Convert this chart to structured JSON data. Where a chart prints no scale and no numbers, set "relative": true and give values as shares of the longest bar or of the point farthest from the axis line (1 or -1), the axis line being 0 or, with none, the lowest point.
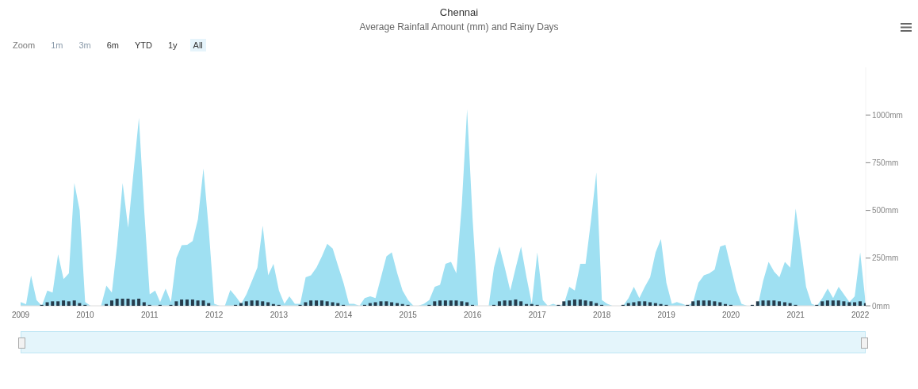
{
  "chart_data": [
    {
      "type": "area",
      "title": "Chennai",
      "subtitle": "Average Rainfall Amount (mm) and Rainy Days",
      "annotations": [
        "Zoom",
        "1m",
        "3m",
        "6m",
        "YTD",
        "1y",
        "All"
      ],
      "x": [
        "2009-01",
        "2009-02",
        "2009-03",
        "2009-04",
        "2009-05",
        "2009-06",
        "2009-07",
        "2009-08",
        "2009-09",
        "2009-10",
        "2009-11",
        "2009-12",
        "2010-01",
        "2010-02",
        "2010-03",
        "2010-04",
        "2010-05",
        "2010-06",
        "2010-07",
        "2010-08",
        "2010-09",
        "2010-10",
        "2010-11",
        "2010-12",
        "2011-01",
        "2011-02",
        "2011-03",
        "2011-04",
        "2011-05",
        "2011-06",
        "2011-07",
        "2011-08",
        "2011-09",
        "2011-10",
        "2011-11",
        "2011-12",
        "2012-01",
        "2012-02",
        "2012-03",
        "2012-04",
        "2012-05",
        "2012-06",
        "2012-07",
        "2012-08",
        "2012-09",
        "2012-10",
        "2012-11",
        "2012-12",
        "2013-01",
        "2013-02",
        "2013-03",
        "2013-04",
        "2013-05",
        "2013-06",
        "2013-07",
        "2013-08",
        "2013-09",
        "2013-10",
        "2013-11",
        "2013-12",
        "2014-01",
        "2014-02",
        "2014-03",
        "2014-04",
        "2014-05",
        "2014-06",
        "2014-07",
        "2014-08",
        "2014-09",
        "2014-10",
        "2014-11",
        "2014-12",
        "2015-01",
        "2015-02",
        "2015-03",
        "2015-04",
        "2015-05",
        "2015-06",
        "2015-07",
        "2015-08",
        "2015-09",
        "2015-10",
        "2015-11",
        "2015-12",
        "2016-01",
        "2016-02",
        "2016-03",
        "2016-04",
        "2016-05",
        "2016-06",
        "2016-07",
        "2016-08",
        "2016-09",
        "2016-10",
        "2016-11",
        "2016-12",
        "2017-01",
        "2017-02",
        "2017-03",
        "2017-04",
        "2017-05",
        "2017-06",
        "2017-07",
        "2017-08",
        "2017-09",
        "2017-10",
        "2017-11",
        "2017-12",
        "2018-01",
        "2018-02",
        "2018-03",
        "2018-04",
        "2018-05",
        "2018-06",
        "2018-07",
        "2018-08",
        "2018-09",
        "2018-10",
        "2018-11",
        "2018-12",
        "2019-01",
        "2019-02",
        "2019-03",
        "2019-04",
        "2019-05",
        "2019-06",
        "2019-07",
        "2019-08",
        "2019-09",
        "2019-10",
        "2019-11",
        "2019-12",
        "2020-01",
        "2020-02",
        "2020-03",
        "2020-04",
        "2020-05",
        "2020-06",
        "2020-07",
        "2020-08",
        "2020-09",
        "2020-10",
        "2020-11",
        "2020-12",
        "2021-01",
        "2021-02",
        "2021-03",
        "2021-04",
        "2021-05",
        "2021-06",
        "2021-07",
        "2021-08",
        "2021-09",
        "2021-10",
        "2021-11",
        "2021-12",
        "2022-01",
        "2022-02"
      ],
      "series": [
        {
          "color": "#9fe0f2",
          "values": [
            20,
            8,
            159,
            30,
            0,
            80,
            70,
            270,
            140,
            170,
            644,
            500,
            20,
            0,
            0,
            0,
            106,
            70,
            318,
            644,
            409,
            697,
            985,
            500,
            60,
            80,
            20,
            90,
            20,
            250,
            318,
            320,
            340,
            455,
            720,
            400,
            10,
            0,
            0,
            83,
            50,
            10,
            60,
            130,
            200,
            420,
            160,
            220,
            80,
            10,
            50,
            10,
            10,
            150,
            160,
            200,
            260,
            325,
            300,
            210,
            120,
            10,
            10,
            0,
            40,
            50,
            40,
            150,
            260,
            280,
            170,
            80,
            30,
            0,
            0,
            10,
            30,
            100,
            110,
            220,
            230,
            170,
            530,
            1030,
            457,
            0,
            0,
            0,
            200,
            310,
            200,
            80,
            200,
            310,
            150,
            10,
            280,
            30,
            0,
            10,
            0,
            10,
            100,
            80,
            220,
            220,
            450,
            700,
            30,
            10,
            0,
            0,
            0,
            40,
            100,
            40,
            100,
            150,
            280,
            350,
            120,
            10,
            20,
            10,
            0,
            20,
            120,
            160,
            170,
            190,
            310,
            320,
            200,
            80,
            10,
            0,
            0,
            0,
            130,
            230,
            180,
            150,
            230,
            200,
            510,
            300,
            100,
            10,
            0,
            40,
            90,
            40,
            100,
            60,
            20,
            50,
            280,
            10
          ]
        }
      ],
      "xlim": [
        "2009-01",
        "2022-02"
      ],
      "xticks": [
        "2009",
        "2010",
        "2011",
        "2012",
        "2013",
        "2014",
        "2015",
        "2016",
        "2017",
        "2018",
        "2019",
        "2020",
        "2021",
        "2022"
      ],
      "ylim": [
        0,
        1250
      ],
      "yticks": [
        {
          "value": 0,
          "label": "0mm"
        },
        {
          "value": 250,
          "label": "250mm"
        },
        {
          "value": 500,
          "label": "500mm"
        },
        {
          "value": 750,
          "label": "750mm"
        },
        {
          "value": 1000,
          "label": "1000mm"
        }
      ]
    },
    {
      "type": "bar",
      "relative": true,
      "x": [
        "2009-01",
        "2009-02",
        "2009-03",
        "2009-04",
        "2009-05",
        "2009-06",
        "2009-07",
        "2009-08",
        "2009-09",
        "2009-10",
        "2009-11",
        "2009-12",
        "2010-01",
        "2010-02",
        "2010-03",
        "2010-04",
        "2010-05",
        "2010-06",
        "2010-07",
        "2010-08",
        "2010-09",
        "2010-10",
        "2010-11",
        "2010-12",
        "2011-01",
        "2011-02",
        "2011-03",
        "2011-04",
        "2011-05",
        "2011-06",
        "2011-07",
        "2011-08",
        "2011-09",
        "2011-10",
        "2011-11",
        "2011-12",
        "2012-01",
        "2012-02",
        "2012-03",
        "2012-04",
        "2012-05",
        "2012-06",
        "2012-07",
        "2012-08",
        "2012-09",
        "2012-10",
        "2012-11",
        "2012-12",
        "2013-01",
        "2013-02",
        "2013-03",
        "2013-04",
        "2013-05",
        "2013-06",
        "2013-07",
        "2013-08",
        "2013-09",
        "2013-10",
        "2013-11",
        "2013-12",
        "2014-01",
        "2014-02",
        "2014-03",
        "2014-04",
        "2014-05",
        "2014-06",
        "2014-07",
        "2014-08",
        "2014-09",
        "2014-10",
        "2014-11",
        "2014-12",
        "2015-01",
        "2015-02",
        "2015-03",
        "2015-04",
        "2015-05",
        "2015-06",
        "2015-07",
        "2015-08",
        "2015-09",
        "2015-10",
        "2015-11",
        "2015-12",
        "2016-01",
        "2016-02",
        "2016-03",
        "2016-04",
        "2016-05",
        "2016-06",
        "2016-07",
        "2016-08",
        "2016-09",
        "2016-10",
        "2016-11",
        "2016-12",
        "2017-01",
        "2017-02",
        "2017-03",
        "2017-04",
        "2017-05",
        "2017-06",
        "2017-07",
        "2017-08",
        "2017-09",
        "2017-10",
        "2017-11",
        "2017-12",
        "2018-01",
        "2018-02",
        "2018-03",
        "2018-04",
        "2018-05",
        "2018-06",
        "2018-07",
        "2018-08",
        "2018-09",
        "2018-10",
        "2018-11",
        "2018-12",
        "2019-01",
        "2019-02",
        "2019-03",
        "2019-04",
        "2019-05",
        "2019-06",
        "2019-07",
        "2019-08",
        "2019-09",
        "2019-10",
        "2019-11",
        "2019-12",
        "2020-01",
        "2020-02",
        "2020-03",
        "2020-04",
        "2020-05",
        "2020-06",
        "2020-07",
        "2020-08",
        "2020-09",
        "2020-10",
        "2020-11",
        "2020-12",
        "2021-01",
        "2021-02",
        "2021-03",
        "2021-04",
        "2021-05",
        "2021-06",
        "2021-07",
        "2021-08",
        "2021-09",
        "2021-10",
        "2021-11",
        "2021-12",
        "2022-01",
        "2022-02"
      ],
      "xlim": [
        "2009-01",
        "2022-02"
      ],
      "series": [
        {
          "color": "#263c4c",
          "values": [
            0,
            0,
            0,
            0,
            0.13,
            0.5,
            0.63,
            0.63,
            0.75,
            0.63,
            0.75,
            0.38,
            0.13,
            0,
            0,
            0,
            0.25,
            0.75,
            1,
            1,
            1,
            0.88,
            1,
            0.5,
            0.13,
            0,
            0.13,
            0,
            0.13,
            0.63,
            0.88,
            0.88,
            0.88,
            0.75,
            0.75,
            0.38,
            0,
            0,
            0,
            0,
            0.13,
            0.38,
            0.63,
            0.75,
            0.75,
            0.63,
            0.5,
            0.25,
            0.13,
            0,
            0,
            0,
            0.13,
            0.5,
            0.75,
            0.75,
            0.75,
            0.63,
            0.5,
            0.38,
            0.13,
            0,
            0,
            0,
            0.13,
            0.38,
            0.5,
            0.63,
            0.63,
            0.5,
            0.38,
            0.25,
            0.13,
            0,
            0,
            0,
            0.13,
            0.63,
            0.75,
            0.75,
            0.75,
            0.75,
            0.63,
            0.5,
            0.13,
            0,
            0,
            0,
            0.13,
            0.63,
            0.75,
            0.75,
            0.88,
            0.63,
            0.25,
            0.25,
            0.13,
            0,
            0,
            0,
            0.13,
            0.63,
            0.75,
            0.88,
            0.88,
            0.75,
            0.63,
            0.38,
            0.13,
            0,
            0,
            0,
            0.13,
            0.38,
            0.5,
            0.63,
            0.63,
            0.5,
            0.38,
            0.25,
            0.13,
            0,
            0,
            0,
            0.13,
            0.63,
            0.75,
            0.75,
            0.75,
            0.63,
            0.5,
            0.25,
            0.13,
            0,
            0,
            0,
            0.13,
            0.63,
            0.75,
            0.75,
            0.75,
            0.63,
            0.5,
            0.38,
            0.13,
            0,
            0,
            0,
            0.13,
            0.63,
            0.75,
            0.75,
            0.75,
            0.63,
            0.5,
            0.5,
            0.63,
            0.38
          ]
        }
      ]
    }
  ]
}
